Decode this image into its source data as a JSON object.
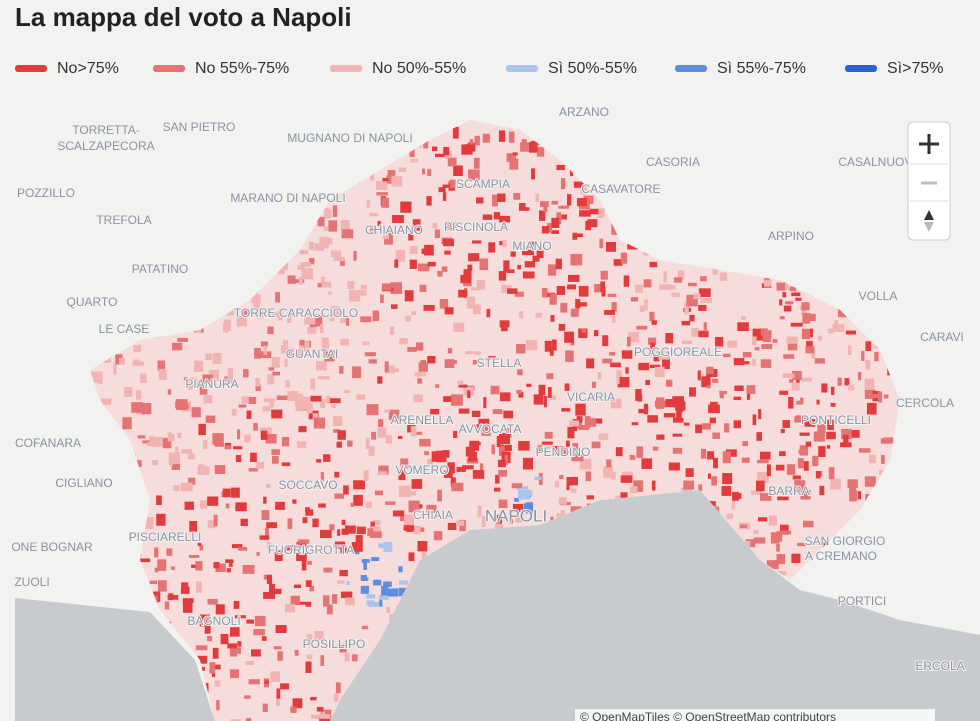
{
  "header": {
    "title": "La mappa del voto a Napoli"
  },
  "legend": [
    {
      "name": "No>75%",
      "color": "#e23b3b"
    },
    {
      "name": "No 55%-75%",
      "color": "#e57373"
    },
    {
      "name": "No 50%-55%",
      "color": "#f2b3b3"
    },
    {
      "name": "Sì 50%-55%",
      "color": "#a9c4ee"
    },
    {
      "name": "Sì 55%-75%",
      "color": "#5b8ee0"
    },
    {
      "name": "Sì>75%",
      "color": "#2a62d6"
    }
  ],
  "places": [
    {
      "label": "ARZANO"
    },
    {
      "label": "TORRETTA-"
    },
    {
      "label": "SCALZAPECORA"
    },
    {
      "label": "SAN PIETRO"
    },
    {
      "label": "MUGNANO DI NAPOLI"
    },
    {
      "label": "CASORIA"
    },
    {
      "label": "CASALNUOVO"
    },
    {
      "label": "SCAMPIA"
    },
    {
      "label": "CASAVATORE"
    },
    {
      "label": "POZZILLO"
    },
    {
      "label": "MARANO DI NAPOLI"
    },
    {
      "label": "TREFOLA"
    },
    {
      "label": "CHIAIANO"
    },
    {
      "label": "PISCINOLA"
    },
    {
      "label": "MIANO"
    },
    {
      "label": "ARPINO"
    },
    {
      "label": "PATATINO"
    },
    {
      "label": "VOLLA"
    },
    {
      "label": "QUARTO"
    },
    {
      "label": "LE CASE"
    },
    {
      "label": "TORRE CARACCIOLO"
    },
    {
      "label": "CARAVI"
    },
    {
      "label": "GUANTAI"
    },
    {
      "label": "POGGIOREALE"
    },
    {
      "label": "STELLA"
    },
    {
      "label": "PIANURA"
    },
    {
      "label": "VICARIA"
    },
    {
      "label": "CERCOLA"
    },
    {
      "label": "ARENELLA"
    },
    {
      "label": "AVVOCATA"
    },
    {
      "label": "PONTICELLI"
    },
    {
      "label": "COFANARA"
    },
    {
      "label": "PENDINO"
    },
    {
      "label": "VOMERO"
    },
    {
      "label": "CIGLIANO"
    },
    {
      "label": "SOCCAVO"
    },
    {
      "label": "BARRA"
    },
    {
      "label": "CHIAIA"
    },
    {
      "label": "NAPOLI"
    },
    {
      "label": "SAN GIORGIO"
    },
    {
      "label": "A CREMANO"
    },
    {
      "label": "PISCIARELLI"
    },
    {
      "label": "ONE BOGNAR"
    },
    {
      "label": "FUORIGROTTA"
    },
    {
      "label": "ZUOLI"
    },
    {
      "label": "PORTICI"
    },
    {
      "label": "BAGNOLI"
    },
    {
      "label": "POSILLIPO"
    },
    {
      "label": "ERCOLA"
    }
  ],
  "attribution": "© OpenMapTiles © OpenStreetMap contributors"
}
